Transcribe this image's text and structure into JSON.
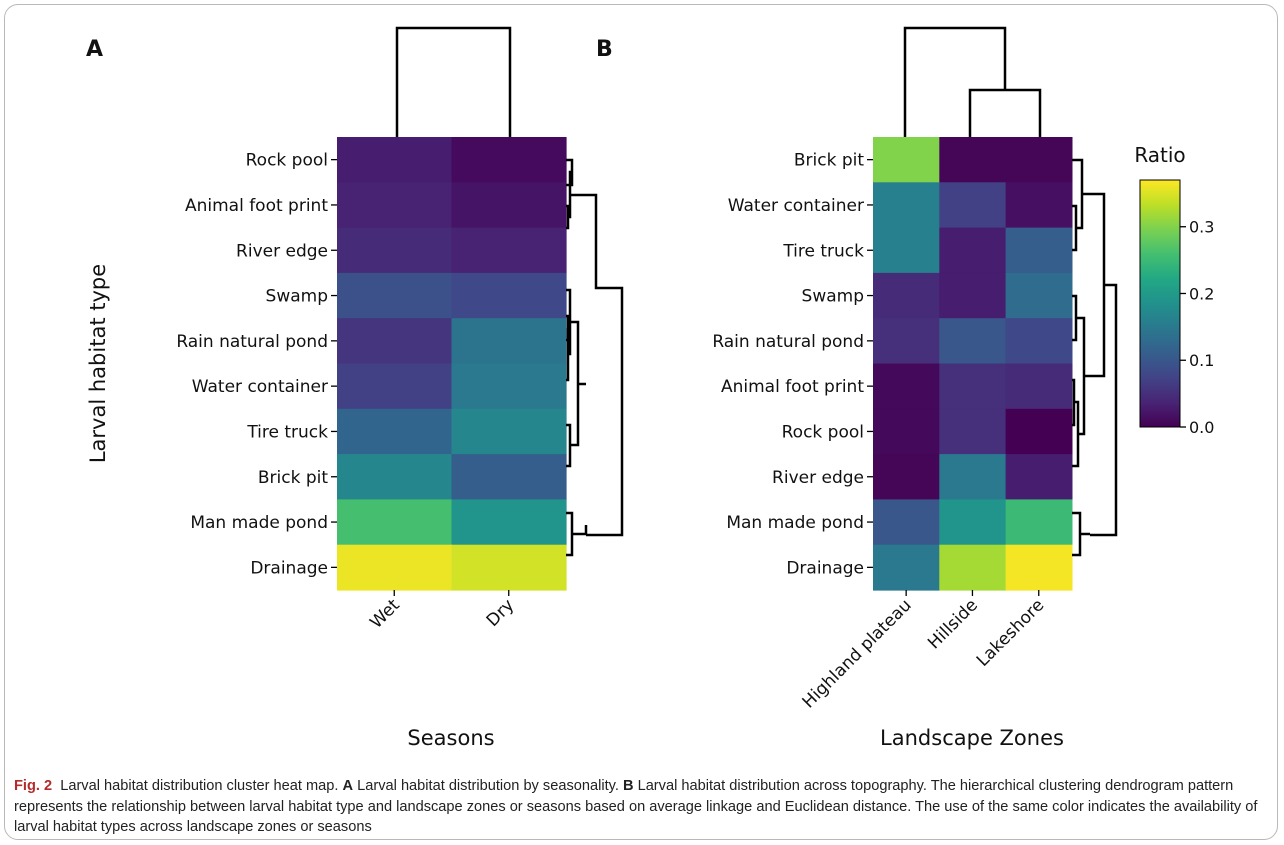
{
  "chart_data": [
    {
      "type": "heatmap",
      "panel_label": "A",
      "ylabel": "Larval habitat type",
      "xlabel": "Seasons",
      "columns": [
        "Wet",
        "Dry"
      ],
      "rows": [
        "Rock pool",
        "Animal foot print",
        "River edge",
        "Swamp",
        "Rain natural pond",
        "Water container",
        "Tire truck",
        "Brick pit",
        "Man made pond",
        "Drainage"
      ],
      "values": [
        [
          0.03,
          0.01
        ],
        [
          0.035,
          0.02
        ],
        [
          0.045,
          0.035
        ],
        [
          0.09,
          0.08
        ],
        [
          0.055,
          0.14
        ],
        [
          0.07,
          0.15
        ],
        [
          0.12,
          0.17
        ],
        [
          0.17,
          0.11
        ],
        [
          0.26,
          0.19
        ],
        [
          0.36,
          0.345
        ]
      ],
      "row_dendrogram": true,
      "column_dendrogram": true
    },
    {
      "type": "heatmap",
      "panel_label": "B",
      "xlabel": "Landscape Zones",
      "columns": [
        "Highland plateau",
        "Hillside",
        "Lakeshore"
      ],
      "rows": [
        "Brick pit",
        "Water container",
        "Tire truck",
        "Swamp",
        "Rain natural pond",
        "Animal foot print",
        "Rock pool",
        "River edge",
        "Man made pond",
        "Drainage"
      ],
      "values": [
        [
          0.3,
          0.005,
          0.005
        ],
        [
          0.16,
          0.07,
          0.015
        ],
        [
          0.16,
          0.03,
          0.11
        ],
        [
          0.045,
          0.03,
          0.13
        ],
        [
          0.05,
          0.1,
          0.08
        ],
        [
          0.008,
          0.05,
          0.045
        ],
        [
          0.008,
          0.05,
          0.0
        ],
        [
          0.005,
          0.15,
          0.03
        ],
        [
          0.1,
          0.19,
          0.25
        ],
        [
          0.15,
          0.32,
          0.365
        ]
      ],
      "row_dendrogram": true,
      "column_dendrogram": true
    }
  ],
  "colorbar": {
    "title": "Ratio",
    "range": [
      0.0,
      0.37
    ],
    "ticks": [
      0.0,
      0.1,
      0.2,
      0.3
    ],
    "tick_labels": [
      "0.0",
      "0.1",
      "0.2",
      "0.3"
    ],
    "colormap": "viridis"
  },
  "caption": {
    "fig_label": "Fig. 2",
    "title": "Larval habitat distribution cluster heat map.",
    "a_label": "A",
    "a_text": "Larval habitat distribution by seasonality.",
    "b_label": "B",
    "b_text": "Larval habitat distribution across topography. The hierarchical clustering dendrogram pattern represents the relationship between larval habitat type and landscape zones or seasons based on average linkage and Euclidean distance. The use of the same color indicates the availability of larval habitat types across landscape zones or seasons"
  }
}
